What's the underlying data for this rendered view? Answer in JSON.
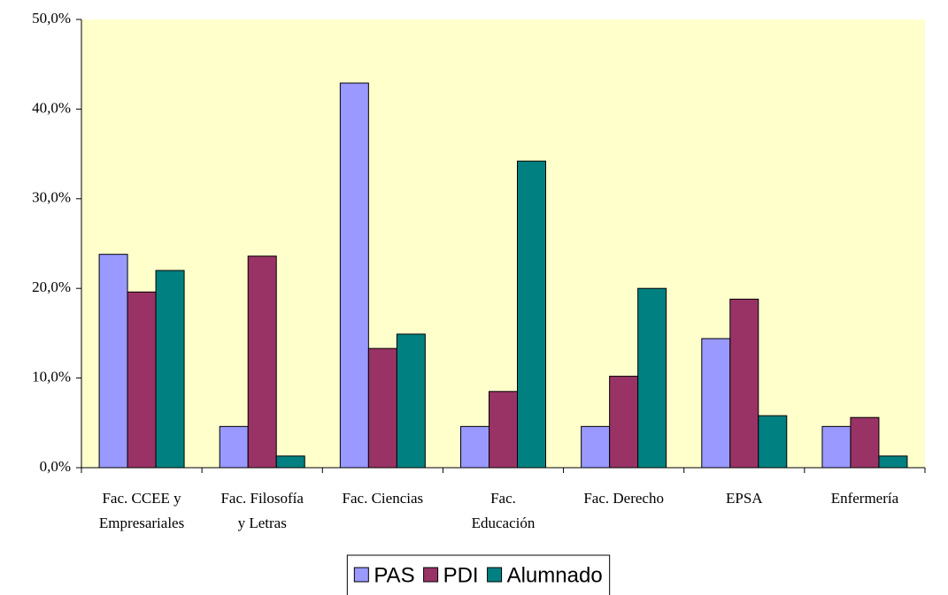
{
  "chart_data": {
    "type": "bar",
    "categories": [
      [
        "Fac. CCEE y",
        "Empresariales"
      ],
      [
        "Fac. Filosofía",
        "y Letras"
      ],
      [
        "Fac. Ciencias"
      ],
      [
        "Fac.",
        "Educación"
      ],
      [
        "Fac. Derecho"
      ],
      [
        "EPSA"
      ],
      [
        "Enfermería"
      ]
    ],
    "series": [
      {
        "name": "PAS",
        "color": "#9999ff",
        "values": [
          23.8,
          4.6,
          42.9,
          4.6,
          4.6,
          14.4,
          4.6
        ]
      },
      {
        "name": "PDI",
        "color": "#993366",
        "values": [
          19.6,
          23.6,
          13.3,
          8.5,
          10.2,
          18.8,
          5.6
        ]
      },
      {
        "name": "Alumnado",
        "color": "#008080",
        "values": [
          22.0,
          1.3,
          14.9,
          34.2,
          20.0,
          5.8,
          1.3
        ]
      }
    ],
    "ylim": [
      0,
      50
    ],
    "yticks": [
      {
        "value": 0,
        "label": "0,0%"
      },
      {
        "value": 10,
        "label": "10,0%"
      },
      {
        "value": 20,
        "label": "20,0%"
      },
      {
        "value": 30,
        "label": "30,0%"
      },
      {
        "value": 40,
        "label": "40,0%"
      },
      {
        "value": 50,
        "label": "50,0%"
      }
    ],
    "grid": false,
    "legend": "bottom",
    "background": "#ffffcc"
  }
}
